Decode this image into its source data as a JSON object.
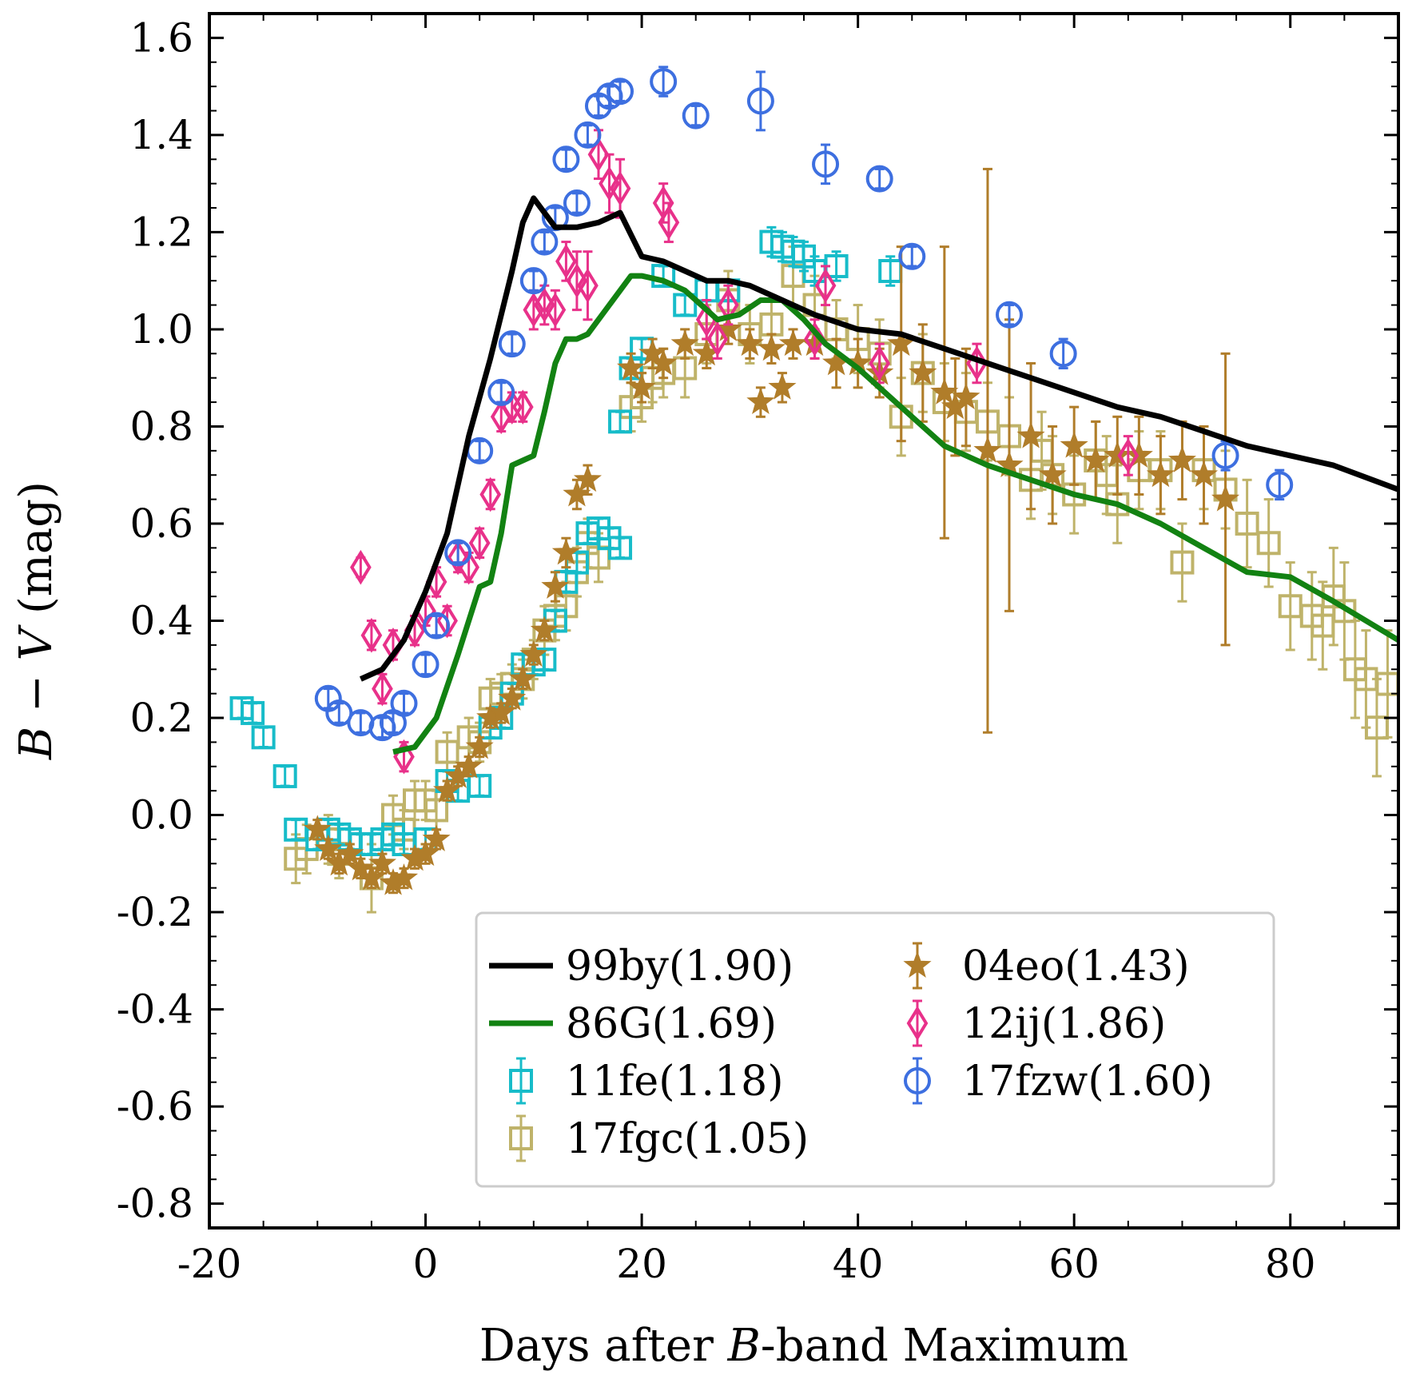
{
  "chart_data": {
    "type": "scatter",
    "title": "",
    "xlabel_parts": [
      "Days after ",
      "B",
      "-band Maximum"
    ],
    "ylabel_parts": [
      "B",
      " − ",
      "V",
      " (mag)"
    ],
    "xlim": [
      -20,
      90
    ],
    "ylim": [
      -0.85,
      1.65
    ],
    "xticks": [
      -20,
      0,
      20,
      40,
      60,
      80
    ],
    "xtick_labels": [
      "-20",
      "0",
      "20",
      "40",
      "60",
      "80"
    ],
    "yticks": [
      -0.8,
      -0.6,
      -0.4,
      -0.2,
      0.0,
      0.2,
      0.4,
      0.6,
      0.8,
      1.0,
      1.2,
      1.4,
      1.6
    ],
    "ytick_labels": [
      "-0.8",
      "-0.6",
      "-0.4",
      "-0.2",
      "0.0",
      "0.2",
      "0.4",
      "0.6",
      "0.8",
      "1.0",
      "1.2",
      "1.4",
      "1.6"
    ],
    "grid": false,
    "legend_position": "lower-right",
    "series": [
      {
        "name": "99by(1.90)",
        "kind": "line",
        "color": "#000000",
        "x": [
          -6,
          -4,
          -2,
          0,
          2,
          4,
          6,
          8,
          9,
          10,
          11,
          12,
          14,
          16,
          18,
          20,
          22,
          24,
          26,
          28,
          30,
          33,
          36,
          40,
          44,
          48,
          52,
          56,
          60,
          64,
          68,
          72,
          76,
          80,
          84,
          90
        ],
        "y": [
          0.28,
          0.3,
          0.36,
          0.46,
          0.58,
          0.78,
          0.94,
          1.12,
          1.22,
          1.27,
          1.24,
          1.21,
          1.21,
          1.22,
          1.24,
          1.15,
          1.14,
          1.12,
          1.1,
          1.1,
          1.09,
          1.06,
          1.03,
          1.0,
          0.99,
          0.96,
          0.93,
          0.9,
          0.87,
          0.84,
          0.82,
          0.79,
          0.76,
          0.74,
          0.72,
          0.67
        ]
      },
      {
        "name": "86G(1.69)",
        "kind": "line",
        "color": "#128212",
        "x": [
          -3,
          -1,
          1,
          3,
          5,
          6,
          7,
          8,
          9,
          10,
          11,
          12,
          13,
          14,
          15,
          17,
          19,
          20,
          22,
          24,
          26,
          27,
          29,
          31,
          33,
          35,
          37,
          40,
          44,
          48,
          52,
          56,
          60,
          64,
          68,
          72,
          76,
          80,
          84,
          90
        ],
        "y": [
          0.13,
          0.14,
          0.2,
          0.33,
          0.47,
          0.48,
          0.58,
          0.72,
          0.73,
          0.74,
          0.83,
          0.93,
          0.98,
          0.98,
          0.99,
          1.05,
          1.11,
          1.11,
          1.1,
          1.08,
          1.04,
          1.02,
          1.03,
          1.06,
          1.06,
          1.02,
          0.97,
          0.92,
          0.84,
          0.76,
          0.72,
          0.69,
          0.66,
          0.64,
          0.6,
          0.55,
          0.5,
          0.49,
          0.44,
          0.36
        ]
      },
      {
        "name": "11fe(1.18)",
        "kind": "marker",
        "marker": "square",
        "color": "#17bcc9",
        "x": [
          -17,
          -16,
          -15,
          -13,
          -12,
          -10,
          -9,
          -8,
          -7,
          -6,
          -5,
          -4,
          -3,
          -2,
          0,
          2,
          3,
          5,
          6,
          7,
          8,
          9,
          10,
          11,
          12,
          13,
          14,
          15,
          16,
          17,
          18,
          18,
          19,
          20,
          22,
          24,
          26,
          28,
          32,
          33,
          34,
          35,
          36,
          38,
          43
        ],
        "y": [
          0.22,
          0.21,
          0.16,
          0.08,
          -0.03,
          -0.05,
          -0.03,
          -0.04,
          -0.05,
          -0.06,
          -0.06,
          -0.05,
          -0.04,
          -0.06,
          -0.05,
          0.07,
          0.05,
          0.06,
          0.18,
          0.2,
          0.25,
          0.31,
          0.31,
          0.32,
          0.4,
          0.48,
          0.52,
          0.58,
          0.59,
          0.57,
          0.55,
          0.81,
          0.92,
          0.96,
          1.11,
          1.05,
          1.08,
          1.08,
          1.18,
          1.17,
          1.16,
          1.15,
          1.12,
          1.13,
          1.12
        ],
        "err": [
          0.02,
          0.02,
          0.02,
          0.02,
          0.02,
          0.02,
          0.02,
          0.02,
          0.02,
          0.02,
          0.02,
          0.02,
          0.02,
          0.02,
          0.02,
          0.02,
          0.02,
          0.02,
          0.02,
          0.02,
          0.02,
          0.02,
          0.02,
          0.02,
          0.02,
          0.02,
          0.02,
          0.02,
          0.02,
          0.02,
          0.02,
          0.02,
          0.02,
          0.02,
          0.02,
          0.02,
          0.02,
          0.02,
          0.03,
          0.03,
          0.03,
          0.03,
          0.03,
          0.03,
          0.03
        ]
      },
      {
        "name": "17fgc(1.05)",
        "kind": "marker",
        "marker": "square",
        "color": "#bfb36a",
        "x": [
          -12,
          -11,
          -9,
          -8,
          -5,
          -3,
          -2,
          -1,
          0,
          1,
          2,
          4,
          5,
          6,
          7,
          8,
          9,
          10,
          11,
          12,
          13,
          14,
          15,
          16,
          19,
          20,
          21,
          22,
          24,
          26,
          28,
          30,
          32,
          34,
          36,
          38,
          40,
          42,
          44,
          46,
          48,
          50,
          52,
          54,
          56,
          57,
          58,
          60,
          62,
          63,
          64,
          66,
          68,
          70,
          72,
          74,
          76,
          78,
          80,
          82,
          83,
          84,
          85,
          86,
          87,
          88,
          89
        ],
        "y": [
          -0.09,
          -0.07,
          -0.05,
          -0.08,
          -0.13,
          0.0,
          -0.03,
          0.03,
          0.03,
          0.01,
          0.13,
          0.16,
          0.15,
          0.24,
          0.25,
          0.27,
          0.28,
          0.32,
          0.38,
          0.41,
          0.43,
          0.5,
          0.56,
          0.53,
          0.84,
          0.86,
          0.9,
          0.91,
          0.92,
          0.99,
          1.06,
          0.99,
          1.01,
          1.11,
          1.05,
          1.0,
          0.98,
          0.95,
          0.82,
          0.91,
          0.85,
          0.83,
          0.81,
          0.78,
          0.69,
          0.75,
          0.7,
          0.66,
          0.73,
          0.7,
          0.64,
          0.71,
          0.71,
          0.52,
          0.71,
          0.67,
          0.6,
          0.56,
          0.43,
          0.41,
          0.39,
          0.45,
          0.42,
          0.3,
          0.28,
          0.18,
          0.27
        ],
        "err": [
          0.05,
          0.05,
          0.05,
          0.05,
          0.07,
          0.04,
          0.04,
          0.04,
          0.04,
          0.04,
          0.04,
          0.04,
          0.04,
          0.04,
          0.04,
          0.04,
          0.04,
          0.04,
          0.05,
          0.05,
          0.05,
          0.05,
          0.05,
          0.05,
          0.05,
          0.05,
          0.05,
          0.05,
          0.06,
          0.06,
          0.06,
          0.06,
          0.06,
          0.06,
          0.06,
          0.06,
          0.07,
          0.07,
          0.08,
          0.08,
          0.08,
          0.08,
          0.08,
          0.08,
          0.08,
          0.08,
          0.08,
          0.08,
          0.08,
          0.08,
          0.08,
          0.08,
          0.08,
          0.08,
          0.08,
          0.08,
          0.09,
          0.09,
          0.09,
          0.09,
          0.09,
          0.1,
          0.1,
          0.1,
          0.1,
          0.1,
          0.11
        ]
      },
      {
        "name": "04eo(1.43)",
        "kind": "marker",
        "marker": "star",
        "color": "#b07d2a",
        "x": [
          -10,
          -9,
          -8,
          -7,
          -6,
          -5,
          -4,
          -3,
          -2,
          -1,
          0,
          1,
          2,
          3,
          4,
          5,
          6,
          7,
          8,
          9,
          10,
          11,
          12,
          13,
          14,
          15,
          19,
          20,
          21,
          22,
          24,
          26,
          28,
          30,
          31,
          32,
          33,
          34,
          36,
          38,
          40,
          42,
          44,
          46,
          48,
          49,
          50,
          52,
          54,
          56,
          58,
          60,
          62,
          64,
          66,
          68,
          70,
          72,
          74
        ],
        "y": [
          -0.03,
          -0.07,
          -0.1,
          -0.08,
          -0.11,
          -0.13,
          -0.1,
          -0.14,
          -0.13,
          -0.09,
          -0.08,
          -0.05,
          0.05,
          0.08,
          0.1,
          0.14,
          0.2,
          0.21,
          0.24,
          0.28,
          0.33,
          0.38,
          0.47,
          0.54,
          0.66,
          0.69,
          0.92,
          0.88,
          0.95,
          0.93,
          0.97,
          0.95,
          1.0,
          0.97,
          0.85,
          0.96,
          0.88,
          0.97,
          0.97,
          0.93,
          0.93,
          0.91,
          0.97,
          0.91,
          0.87,
          0.84,
          0.86,
          0.75,
          0.72,
          0.78,
          0.7,
          0.76,
          0.73,
          0.74,
          0.74,
          0.7,
          0.73,
          0.7,
          0.65
        ],
        "err": [
          0.02,
          0.02,
          0.02,
          0.02,
          0.02,
          0.02,
          0.02,
          0.02,
          0.02,
          0.02,
          0.02,
          0.02,
          0.02,
          0.02,
          0.02,
          0.02,
          0.02,
          0.02,
          0.02,
          0.02,
          0.02,
          0.02,
          0.03,
          0.03,
          0.03,
          0.03,
          0.03,
          0.03,
          0.03,
          0.03,
          0.03,
          0.03,
          0.03,
          0.03,
          0.03,
          0.03,
          0.03,
          0.03,
          0.03,
          0.05,
          0.05,
          0.05,
          0.2,
          0.1,
          0.3,
          0.1,
          0.1,
          0.58,
          0.3,
          0.15,
          0.1,
          0.08,
          0.08,
          0.08,
          0.08,
          0.08,
          0.08,
          0.1,
          0.3
        ]
      },
      {
        "name": "12ij(1.86)",
        "kind": "marker",
        "marker": "diamond",
        "color": "#e8318a",
        "x": [
          -6,
          -5,
          -4,
          -3,
          -2,
          -1,
          0,
          1,
          2,
          3,
          4,
          5,
          6,
          7,
          8,
          9,
          10,
          11,
          12,
          13,
          14,
          15,
          16,
          17,
          18,
          22,
          22.5,
          26,
          27,
          28,
          36,
          37,
          42,
          51,
          65
        ],
        "y": [
          0.51,
          0.37,
          0.26,
          0.35,
          0.12,
          0.38,
          0.42,
          0.48,
          0.4,
          0.53,
          0.51,
          0.56,
          0.66,
          0.82,
          0.84,
          0.84,
          1.04,
          1.05,
          1.04,
          1.14,
          1.1,
          1.09,
          1.36,
          1.3,
          1.29,
          1.26,
          1.22,
          1.02,
          0.98,
          1.05,
          0.98,
          1.09,
          0.93,
          0.93,
          0.74
        ],
        "err": [
          0.02,
          0.03,
          0.03,
          0.03,
          0.03,
          0.03,
          0.03,
          0.03,
          0.03,
          0.03,
          0.03,
          0.03,
          0.03,
          0.03,
          0.03,
          0.03,
          0.04,
          0.04,
          0.04,
          0.04,
          0.06,
          0.07,
          0.05,
          0.06,
          0.06,
          0.04,
          0.04,
          0.04,
          0.04,
          0.04,
          0.04,
          0.04,
          0.04,
          0.04,
          0.04
        ]
      },
      {
        "name": "17fzw(1.60)",
        "kind": "marker",
        "marker": "circle",
        "color": "#3d6fe0",
        "x": [
          -9,
          -8,
          -6,
          -4,
          -3,
          -2,
          0,
          1,
          3,
          5,
          7,
          8,
          10,
          11,
          12,
          13,
          14,
          15,
          16,
          17,
          18,
          22,
          25,
          31,
          37,
          42,
          45,
          54,
          59,
          74,
          79
        ],
        "y": [
          0.24,
          0.21,
          0.19,
          0.18,
          0.19,
          0.23,
          0.31,
          0.39,
          0.54,
          0.75,
          0.87,
          0.97,
          1.1,
          1.18,
          1.23,
          1.35,
          1.26,
          1.4,
          1.46,
          1.48,
          1.49,
          1.51,
          1.44,
          1.47,
          1.34,
          1.31,
          1.15,
          1.03,
          0.95,
          0.74,
          0.68
        ],
        "err": [
          0.02,
          0.02,
          0.02,
          0.02,
          0.02,
          0.02,
          0.02,
          0.02,
          0.02,
          0.02,
          0.02,
          0.02,
          0.02,
          0.02,
          0.02,
          0.02,
          0.02,
          0.02,
          0.02,
          0.02,
          0.02,
          0.03,
          0.02,
          0.06,
          0.04,
          0.02,
          0.02,
          0.02,
          0.03,
          0.03,
          0.03
        ]
      }
    ],
    "legend_order": [
      [
        0,
        1,
        2,
        3
      ],
      [
        4,
        5,
        6
      ]
    ]
  }
}
